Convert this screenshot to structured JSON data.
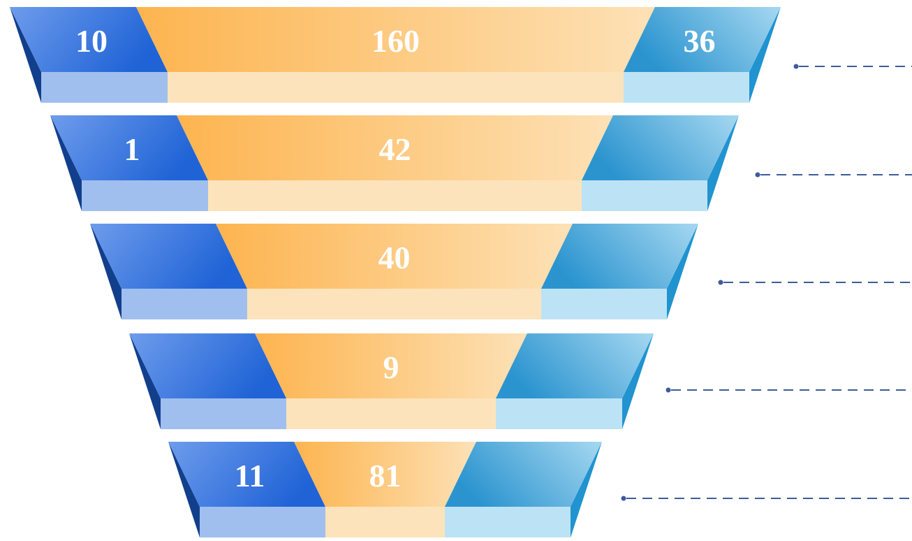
{
  "colors": {
    "blue_face_start": "#6E9CEC",
    "blue_face_end": "#1F63D6",
    "blue_side": "#123F8C",
    "blue_band": "#A0BFEF",
    "orange_face_start": "#FDB44F",
    "orange_face_end": "#FDE1B6",
    "orange_band": "#FDE3BB",
    "lightblue_face_start": "#2B94CF",
    "lightblue_face_end": "#A6D8F1",
    "lightblue_side": "#2093D0",
    "lightblue_band": "#BCE3F5",
    "label_text": "#FFFFFF",
    "leader_line": "#3D5A9C"
  },
  "levels": [
    {
      "left_value": "10",
      "center_value": "160",
      "right_value": "36"
    },
    {
      "left_value": "1",
      "center_value": "42",
      "right_value": ""
    },
    {
      "left_value": "",
      "center_value": "40",
      "right_value": ""
    },
    {
      "left_value": "",
      "center_value": "9",
      "right_value": ""
    },
    {
      "left_value": "11",
      "center_value": "81",
      "right_value": ""
    }
  ]
}
